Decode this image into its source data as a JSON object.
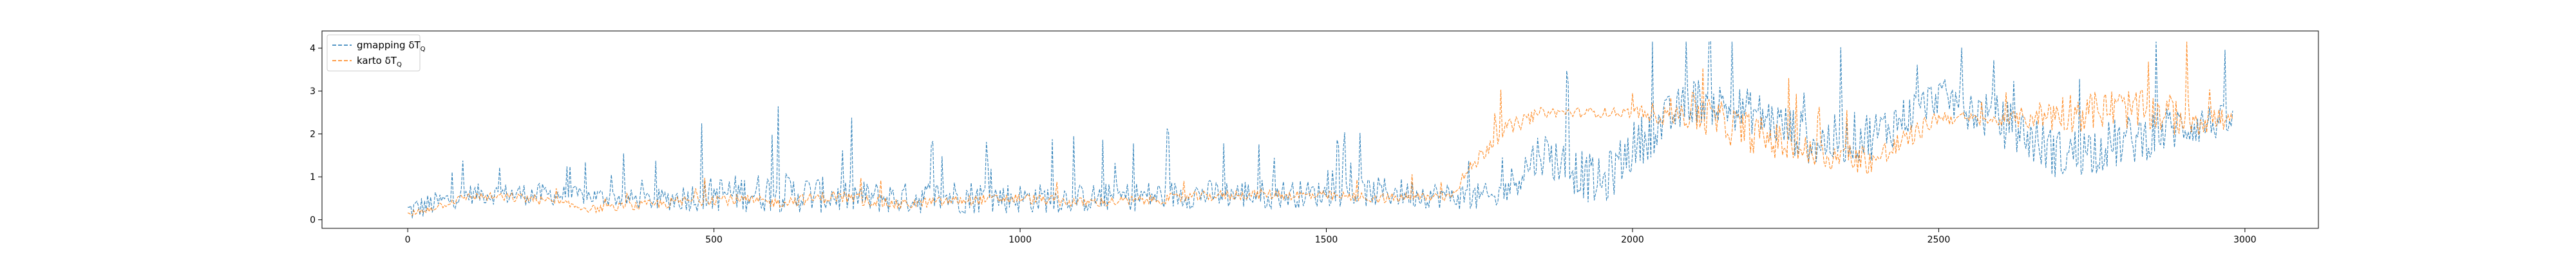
{
  "chart_data": {
    "type": "line",
    "title": "",
    "xlabel": "",
    "ylabel": "",
    "xlim": [
      -140,
      3120
    ],
    "ylim": [
      -0.2,
      4.4
    ],
    "xticks": [
      0,
      500,
      1000,
      1500,
      2000,
      2500,
      3000
    ],
    "yticks": [
      0,
      1,
      2,
      3,
      4
    ],
    "grid": false,
    "legend_position": "top-left",
    "legend": [
      {
        "label": "gmapping δT",
        "sub": "Q",
        "color": "#1f77b4"
      },
      {
        "label": "karto δT",
        "sub": "Q",
        "color": "#ff7f0e"
      }
    ],
    "x": [
      0,
      100,
      200,
      300,
      400,
      500,
      600,
      700,
      800,
      900,
      1000,
      1100,
      1200,
      1300,
      1400,
      1500,
      1600,
      1700,
      1780,
      1850,
      1950,
      2000,
      2100,
      2200,
      2300,
      2400,
      2500,
      2600,
      2700,
      2800,
      2900,
      2980
    ],
    "series": [
      {
        "name": "gmapping δT_Q",
        "color": "#1f77b4",
        "style": "dashed",
        "values": [
          0.2,
          0.6,
          0.6,
          0.55,
          0.45,
          0.6,
          0.65,
          0.55,
          0.5,
          0.55,
          0.5,
          0.5,
          0.55,
          0.6,
          0.6,
          0.6,
          0.65,
          0.55,
          0.5,
          1.6,
          0.8,
          1.7,
          2.8,
          2.5,
          1.8,
          2.0,
          2.9,
          2.3,
          1.5,
          1.8,
          2.2,
          2.3
        ],
        "spread": [
          0.5,
          0.4,
          0.45,
          0.35,
          0.4,
          0.7,
          0.8,
          0.7,
          0.6,
          0.7,
          0.6,
          0.55,
          0.6,
          0.55,
          0.6,
          0.5,
          0.6,
          0.5,
          0.6,
          0.9,
          1.0,
          1.0,
          0.9,
          0.9,
          1.0,
          1.0,
          0.7,
          1.0,
          1.0,
          1.0,
          0.9,
          0.6
        ]
      },
      {
        "name": "karto δT_Q",
        "color": "#ff7f0e",
        "style": "dashed",
        "values": [
          0.1,
          0.55,
          0.5,
          0.25,
          0.35,
          0.5,
          0.4,
          0.55,
          0.35,
          0.45,
          0.5,
          0.4,
          0.45,
          0.55,
          0.6,
          0.55,
          0.5,
          0.55,
          2.0,
          2.5,
          2.5,
          2.5,
          2.5,
          2.0,
          1.5,
          1.4,
          2.4,
          2.3,
          2.5,
          2.6,
          2.4,
          2.3
        ],
        "spread": [
          0.15,
          0.15,
          0.2,
          0.15,
          0.2,
          0.25,
          0.2,
          0.25,
          0.2,
          0.2,
          0.2,
          0.2,
          0.2,
          0.2,
          0.2,
          0.2,
          0.2,
          0.2,
          0.4,
          0.2,
          0.2,
          0.2,
          0.8,
          0.8,
          0.6,
          0.6,
          0.3,
          0.2,
          0.8,
          0.8,
          0.8,
          0.5
        ]
      }
    ]
  }
}
